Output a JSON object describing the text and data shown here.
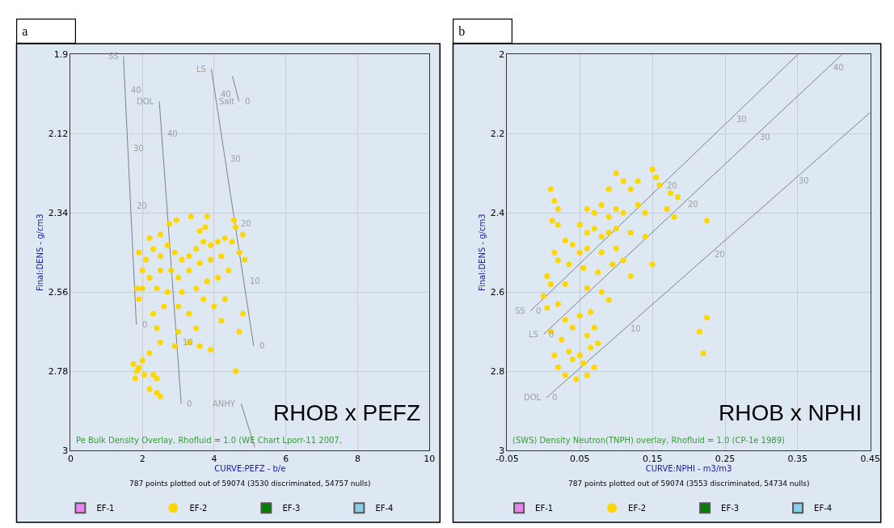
{
  "chart_data": [
    {
      "type": "scatter",
      "title": "a",
      "xlabel": "CURVE:PEFZ - b/e",
      "ylabel": "Final:DENS - g/cm3",
      "xlim": [
        0,
        10
      ],
      "ylim": [
        3,
        1.9
      ],
      "xticks": [
        0,
        2,
        4,
        6,
        8,
        10
      ],
      "yticks": [
        1.9,
        2.12,
        2.34,
        2.56,
        2.78,
        3
      ],
      "grid": true,
      "legend": "bottom",
      "marker": "circle",
      "annotations": [
        "RHOB x PEFZ",
        "Pe Bulk Density Overlay, Rhofluid = 1.0 (WE Chart Lporr-11 2007,",
        "787 points plotted out of 59074 (3530 discriminated, 54757 nulls)",
        {
          "text": "40",
          "x": 1.516,
          "y": 2.0
        },
        {
          "text": "30",
          "x": 1.593,
          "y": 2.16
        },
        {
          "text": "20",
          "x": 1.67,
          "y": 2.32
        },
        {
          "text": "0",
          "x": 1.83,
          "y": 2.65
        },
        {
          "text": "40",
          "x": 2.535,
          "y": 2.12
        },
        {
          "text": "10",
          "x": 2.956,
          "y": 2.7
        },
        {
          "text": "0",
          "x": 3.08,
          "y": 2.87
        },
        {
          "text": "40",
          "x": 4.027,
          "y": 2.01
        },
        {
          "text": "30",
          "x": 4.303,
          "y": 2.19
        },
        {
          "text": "20",
          "x": 4.579,
          "y": 2.37
        },
        {
          "text": "10",
          "x": 4.824,
          "y": 2.53
        },
        {
          "text": "0",
          "x": 5.1,
          "y": 2.71
        },
        {
          "text": "0",
          "x": 4.69,
          "y": 2.03
        }
      ],
      "series": [
        {
          "type": "line",
          "name": "SS",
          "color": "#808080",
          "marker": "none",
          "x": [
            1.47,
            1.516,
            1.593,
            1.67,
            1.83
          ],
          "values": [
            1.905,
            2.0,
            2.16,
            2.32,
            2.65
          ]
        },
        {
          "type": "line",
          "name": "DOL",
          "color": "#808080",
          "marker": "none",
          "x": [
            2.47,
            2.535,
            2.956,
            3.08
          ],
          "values": [
            2.03,
            2.12,
            2.7,
            2.87
          ]
        },
        {
          "type": "line",
          "name": "LS",
          "color": "#808080",
          "marker": "none",
          "x": [
            3.92,
            4.027,
            4.303,
            4.579,
            4.824,
            5.1
          ],
          "values": [
            1.94,
            2.01,
            2.19,
            2.37,
            2.53,
            2.71
          ]
        },
        {
          "type": "line",
          "name": "Salt",
          "color": "#808080",
          "marker": "none",
          "x": [
            4.69,
            4.51
          ],
          "values": [
            2.03,
            1.96
          ]
        },
        {
          "type": "line",
          "name": "ANHY",
          "color": "#808080",
          "marker": "none",
          "x": [
            4.75,
            5.13
          ],
          "values": [
            2.87,
            2.99
          ]
        },
        {
          "name": "EF-1",
          "color": "#ee82ee"
        },
        {
          "name": "EF-2",
          "color": "#ffd700",
          "x": [
            2.75,
            2.95,
            3.35,
            3.8,
            4.55,
            4.6,
            4.8,
            2.5,
            2.2,
            3.6,
            3.75,
            1.9,
            2.0,
            1.85,
            1.9,
            2.1,
            2.3,
            2.5,
            2.7,
            2.9,
            3.1,
            3.3,
            3.5,
            3.7,
            3.9,
            4.1,
            4.3,
            4.5,
            2.2,
            2.5,
            2.8,
            3.0,
            3.3,
            3.6,
            3.9,
            4.2,
            2.0,
            2.4,
            2.7,
            3.1,
            3.5,
            3.8,
            4.1,
            4.4,
            4.7,
            4.85,
            2.3,
            2.6,
            3.0,
            3.3,
            3.7,
            4.0,
            4.3,
            4.8,
            2.4,
            3.0,
            3.5,
            4.2,
            4.7,
            2.5,
            2.9,
            3.3,
            3.6,
            3.9,
            4.6,
            1.75,
            1.85,
            2.0,
            2.2,
            1.8,
            2.05,
            2.3,
            2.4,
            2.2,
            2.4,
            2.5,
            1.9
          ],
          "values": [
            2.37,
            2.36,
            2.35,
            2.35,
            2.36,
            2.38,
            2.4,
            2.4,
            2.41,
            2.39,
            2.38,
            2.45,
            2.5,
            2.55,
            2.58,
            2.47,
            2.44,
            2.46,
            2.43,
            2.45,
            2.47,
            2.46,
            2.44,
            2.42,
            2.43,
            2.42,
            2.41,
            2.42,
            2.52,
            2.5,
            2.5,
            2.52,
            2.5,
            2.48,
            2.47,
            2.46,
            2.55,
            2.55,
            2.56,
            2.56,
            2.55,
            2.53,
            2.52,
            2.5,
            2.45,
            2.47,
            2.62,
            2.6,
            2.6,
            2.62,
            2.58,
            2.6,
            2.58,
            2.62,
            2.66,
            2.67,
            2.66,
            2.64,
            2.67,
            2.7,
            2.71,
            2.7,
            2.71,
            2.72,
            2.78,
            2.76,
            2.78,
            2.75,
            2.73,
            2.8,
            2.79,
            2.79,
            2.8,
            2.83,
            2.84,
            2.85,
            2.77
          ]
        },
        {
          "name": "EF-3",
          "color": "#008000"
        },
        {
          "name": "EF-4",
          "color": "#87ceeb"
        }
      ]
    },
    {
      "type": "scatter",
      "title": "b",
      "xlabel": "CURVE:NPHI - m3/m3",
      "ylabel": "Final:DENS - g/cm3",
      "xlim": [
        -0.05,
        0.45
      ],
      "ylim": [
        3,
        2
      ],
      "xticks": [
        -0.05,
        0.05,
        0.15,
        0.25,
        0.35,
        0.45
      ],
      "yticks": [
        2,
        2.2,
        2.4,
        2.6,
        2.8,
        3
      ],
      "grid": true,
      "legend": "bottom",
      "marker": "circle",
      "annotations": [
        "RHOB x NPHI",
        "(SWS) Density Neutron(TNPH) overlay, Rhofluid = 1.0 (CP-1e 1989)",
        "787 points plotted out of 59074 (3553 discriminated, 54734 nulls)",
        {
          "text": "0",
          "x": -0.018,
          "y": 2.648
        },
        {
          "text": "20",
          "x": 0.1626,
          "y": 2.33
        },
        {
          "text": "30",
          "x": 0.2575,
          "y": 2.163
        },
        {
          "text": "0",
          "x": 0.0,
          "y": 2.707
        },
        {
          "text": "20",
          "x": 0.1912,
          "y": 2.378
        },
        {
          "text": "30",
          "x": 0.29,
          "y": 2.208
        },
        {
          "text": "40",
          "x": 0.3918,
          "y": 2.033
        },
        {
          "text": "0",
          "x": 0.004,
          "y": 2.867
        },
        {
          "text": "10",
          "x": 0.1123,
          "y": 2.692
        },
        {
          "text": "20",
          "x": 0.228,
          "y": 2.505
        },
        {
          "text": "30",
          "x": 0.343,
          "y": 2.319
        }
      ],
      "series": [
        {
          "type": "line",
          "name": "SS",
          "color": "#808080",
          "marker": "none",
          "x": [
            -0.018,
            0.1626,
            0.2575,
            0.35
          ],
          "values": [
            2.648,
            2.33,
            2.163,
            2.0
          ]
        },
        {
          "type": "line",
          "name": "LS",
          "color": "#808080",
          "marker": "none",
          "x": [
            0.0,
            0.1912,
            0.29,
            0.3918,
            0.411
          ],
          "values": [
            2.707,
            2.378,
            2.208,
            2.033,
            2.0
          ]
        },
        {
          "type": "line",
          "name": "DOL",
          "color": "#808080",
          "marker": "none",
          "x": [
            0.004,
            0.1123,
            0.228,
            0.343,
            0.45
          ],
          "values": [
            2.867,
            2.692,
            2.505,
            2.319,
            2.146
          ]
        },
        {
          "name": "EF-1",
          "color": "#ee82ee"
        },
        {
          "name": "EF-2",
          "color": "#ffd700",
          "x": [
            0.01,
            0.015,
            0.02,
            0.012,
            0.02,
            0.1,
            0.11,
            0.15,
            0.155,
            0.16,
            0.13,
            0.12,
            0.09,
            0.175,
            0.185,
            0.17,
            0.18,
            0.06,
            0.07,
            0.08,
            0.09,
            0.1,
            0.11,
            0.13,
            0.14,
            0.05,
            0.06,
            0.07,
            0.08,
            0.09,
            0.1,
            0.12,
            0.03,
            0.04,
            0.05,
            0.06,
            0.08,
            0.1,
            0.11,
            0.015,
            0.02,
            0.035,
            0.055,
            0.075,
            0.095,
            0.12,
            0.14,
            0.15,
            0.005,
            0.01,
            0.0,
            0.03,
            0.06,
            0.08,
            0.09,
            0.005,
            0.02,
            0.03,
            0.05,
            0.065,
            0.01,
            0.04,
            0.07,
            0.025,
            0.06,
            0.015,
            0.035,
            0.05,
            0.065,
            0.075,
            0.02,
            0.04,
            0.055,
            0.03,
            0.045,
            0.06,
            0.07,
            0.225,
            0.225,
            0.215,
            0.22
          ],
          "values": [
            2.34,
            2.37,
            2.39,
            2.42,
            2.43,
            2.3,
            2.32,
            2.29,
            2.31,
            2.33,
            2.32,
            2.34,
            2.34,
            2.35,
            2.36,
            2.39,
            2.41,
            2.39,
            2.4,
            2.38,
            2.41,
            2.39,
            2.4,
            2.38,
            2.4,
            2.43,
            2.45,
            2.44,
            2.46,
            2.45,
            2.44,
            2.45,
            2.47,
            2.48,
            2.5,
            2.49,
            2.5,
            2.49,
            2.52,
            2.5,
            2.52,
            2.53,
            2.54,
            2.55,
            2.53,
            2.56,
            2.46,
            2.53,
            2.56,
            2.58,
            2.61,
            2.58,
            2.59,
            2.6,
            2.62,
            2.64,
            2.63,
            2.67,
            2.66,
            2.65,
            2.7,
            2.69,
            2.69,
            2.72,
            2.71,
            2.76,
            2.75,
            2.76,
            2.74,
            2.73,
            2.79,
            2.77,
            2.78,
            2.81,
            2.82,
            2.81,
            2.79,
            2.42,
            2.665,
            2.7,
            2.755
          ]
        },
        {
          "name": "EF-3",
          "color": "#008000"
        },
        {
          "name": "EF-4",
          "color": "#87ceeb"
        }
      ]
    }
  ]
}
